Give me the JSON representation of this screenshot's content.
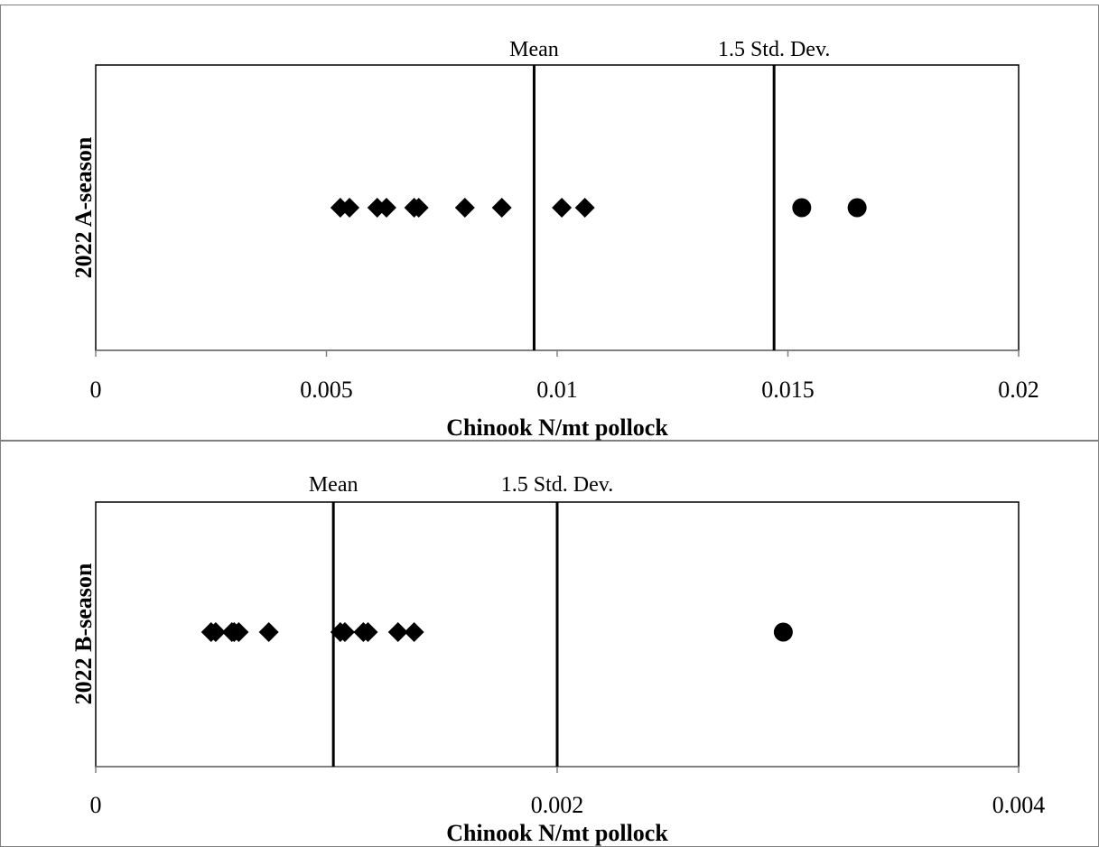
{
  "chart_data": [
    {
      "type": "scatter",
      "ylabel": "2022 A-season",
      "xlabel": "Chinook  N/mt pollock",
      "xlim": [
        0,
        0.02
      ],
      "x_ticks": [
        "0",
        "0.005",
        "0.01",
        "0.015",
        "0.02"
      ],
      "x_tick_values": [
        0,
        0.005,
        0.01,
        0.015,
        0.02
      ],
      "reference_lines": [
        {
          "label": "Mean",
          "x": 0.0095
        },
        {
          "label": "1.5 Std. Dev.",
          "x": 0.0147
        }
      ],
      "series": [
        {
          "marker": "diamond",
          "x": [
            0.0053,
            0.0055,
            0.0061,
            0.0063,
            0.0069,
            0.007,
            0.008,
            0.0088,
            0.0101,
            0.0106
          ]
        },
        {
          "marker": "circle",
          "x": [
            0.0153,
            0.0165
          ]
        }
      ]
    },
    {
      "type": "scatter",
      "ylabel": "2022 B-season",
      "xlabel": "Chinook  N/mt pollock",
      "xlim": [
        0,
        0.004
      ],
      "x_ticks": [
        "0",
        "0.002",
        "0.004"
      ],
      "x_tick_values": [
        0,
        0.002,
        0.004
      ],
      "reference_lines": [
        {
          "label": "Mean",
          "x": 0.00103
        },
        {
          "label": "1.5 Std. Dev.",
          "x": 0.002
        }
      ],
      "series": [
        {
          "marker": "diamond",
          "x": [
            0.0005,
            0.00052,
            0.00059,
            0.0006,
            0.00062,
            0.00075,
            0.00106,
            0.00108,
            0.00116,
            0.00118,
            0.00131,
            0.00138
          ]
        },
        {
          "marker": "circle",
          "x": [
            0.00298
          ]
        }
      ]
    }
  ]
}
